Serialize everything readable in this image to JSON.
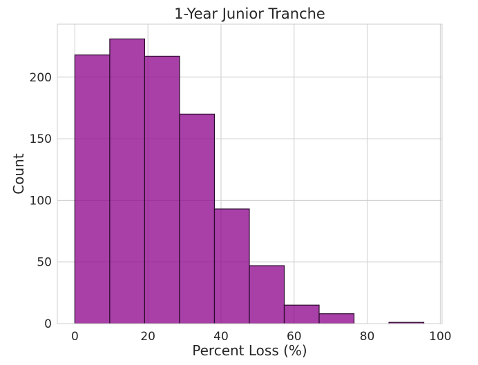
{
  "chart_data": {
    "type": "histogram",
    "title": "1-Year Junior Tranche",
    "xlabel": "Percent Loss (%)",
    "ylabel": "Count",
    "xlim": [
      -4.8,
      100.5
    ],
    "ylim": [
      0,
      243
    ],
    "xticks": [
      0,
      20,
      40,
      60,
      80,
      100
    ],
    "yticks": [
      0,
      50,
      100,
      150,
      200
    ],
    "grid": true,
    "bar_color": "#8B008B",
    "bar_edge_color": "#2a0a2a",
    "bins": [
      {
        "start": 0.0,
        "end": 9.55,
        "count": 218
      },
      {
        "start": 9.55,
        "end": 19.1,
        "count": 231
      },
      {
        "start": 19.1,
        "end": 28.65,
        "count": 217
      },
      {
        "start": 28.65,
        "end": 38.2,
        "count": 170
      },
      {
        "start": 38.2,
        "end": 47.75,
        "count": 93
      },
      {
        "start": 47.75,
        "end": 57.3,
        "count": 47
      },
      {
        "start": 57.3,
        "end": 66.85,
        "count": 15
      },
      {
        "start": 66.85,
        "end": 76.4,
        "count": 8
      },
      {
        "start": 76.4,
        "end": 85.95,
        "count": 0
      },
      {
        "start": 85.95,
        "end": 95.5,
        "count": 1
      }
    ]
  }
}
